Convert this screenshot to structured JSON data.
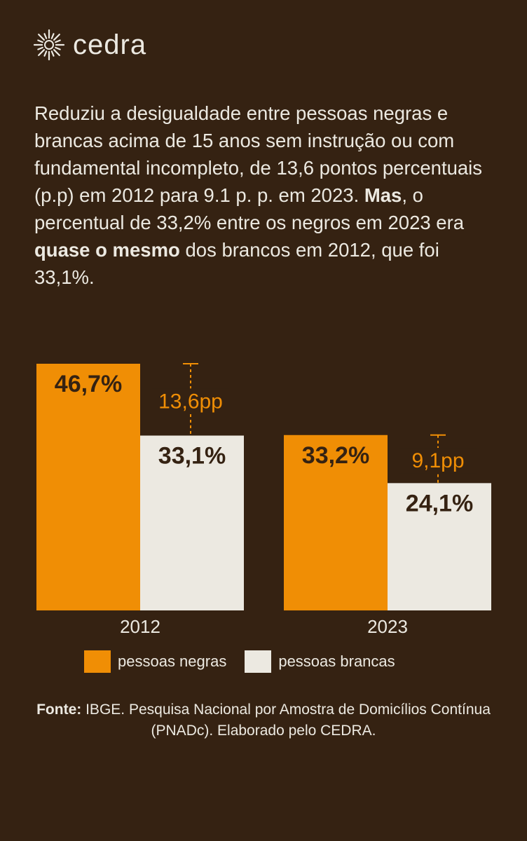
{
  "brand": {
    "name": "cedra",
    "icon": "sun-burst-icon"
  },
  "intro": {
    "part1": "Reduziu a desigualdade entre pessoas negras e brancas acima de 15 anos sem instrução ou com fundamental incompleto, de 13,6 pontos percentuais (p.p) em 2012 para 9.1 p. p. em 2023. ",
    "bold1": "Mas",
    "part2": ", o percentual de 33,2% entre os negros em 2023 era ",
    "bold2": "quase o mesmo",
    "part3": " dos brancos em 2012, que foi 33,1%."
  },
  "chart_data": {
    "type": "bar",
    "title": "",
    "categories": [
      "2012",
      "2023"
    ],
    "series": [
      {
        "name": "pessoas negras",
        "values": [
          46.7,
          33.2
        ],
        "labels": [
          "46,7%",
          "33,2%"
        ],
        "color": "#f08e05"
      },
      {
        "name": "pessoas brancas",
        "values": [
          33.1,
          24.1
        ],
        "labels": [
          "33,1%",
          "24,1%"
        ],
        "color": "#ece9e1"
      }
    ],
    "gaps": [
      {
        "category": "2012",
        "value": 13.6,
        "label": "13,6pp"
      },
      {
        "category": "2023",
        "value": 9.1,
        "label": "9,1pp"
      }
    ],
    "ylim": [
      0,
      46.7
    ],
    "xlabel": "",
    "ylabel": "",
    "grid": false,
    "legend_position": "bottom"
  },
  "legend": [
    {
      "label": "pessoas negras",
      "color": "#f08e05"
    },
    {
      "label": "pessoas brancas",
      "color": "#ece9e1"
    }
  ],
  "source": {
    "label": "Fonte:",
    "text": " IBGE. Pesquisa Nacional por Amostra de Domicílios Contínua (PNADc). Elaborado pelo CEDRA."
  },
  "colors": {
    "background": "#352212",
    "accent": "#f08e05",
    "light": "#ece9e1",
    "dark_text": "#352212"
  }
}
